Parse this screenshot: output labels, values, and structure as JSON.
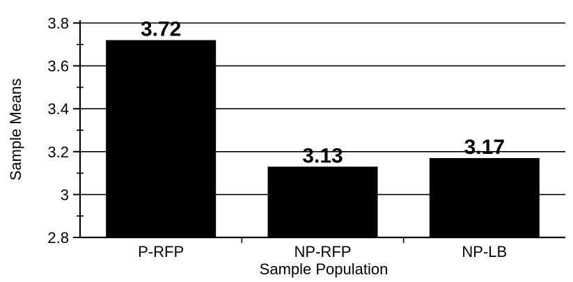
{
  "chart_data": {
    "type": "bar",
    "title": "",
    "xlabel": "Sample Population",
    "ylabel": "Sample Means",
    "categories": [
      "P-RFP",
      "NP-RFP",
      "NP-LB"
    ],
    "values": [
      3.72,
      3.13,
      3.17
    ],
    "data_labels": [
      "3.72",
      "3.13",
      "3.17"
    ],
    "y_ticks": [
      2.8,
      3.0,
      3.2,
      3.4,
      3.6,
      3.8
    ],
    "y_tick_labels": [
      "2.8",
      "3",
      "3.2",
      "3.4",
      "3.6",
      "3.8"
    ],
    "ylim": [
      2.8,
      3.8
    ],
    "grid": true,
    "bar_color": "#000000",
    "grid_color": "#000000"
  }
}
